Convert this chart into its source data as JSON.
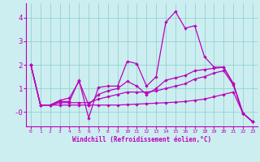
{
  "xlabel": "Windchill (Refroidissement éolien,°C)",
  "background_color": "#cceef0",
  "line_color": "#bb00bb",
  "xlim": [
    -0.5,
    23.5
  ],
  "ylim": [
    -0.6,
    4.6
  ],
  "xticks": [
    0,
    1,
    2,
    3,
    4,
    5,
    6,
    7,
    8,
    9,
    10,
    11,
    12,
    13,
    14,
    15,
    16,
    17,
    18,
    19,
    20,
    21,
    22,
    23
  ],
  "ytick_vals": [
    0,
    1,
    2,
    3,
    4
  ],
  "ytick_labels": [
    "-0",
    "1",
    "2",
    "3",
    "4"
  ],
  "series": [
    [
      2.0,
      0.3,
      0.3,
      0.45,
      0.45,
      1.35,
      -0.25,
      1.05,
      1.1,
      1.1,
      2.15,
      2.05,
      1.1,
      1.5,
      3.8,
      4.25,
      3.55,
      3.65,
      2.35,
      1.9,
      1.9,
      1.2,
      -0.05,
      -0.4
    ],
    [
      2.0,
      0.3,
      0.3,
      0.5,
      0.6,
      1.3,
      0.3,
      0.75,
      0.9,
      1.0,
      1.3,
      1.1,
      0.75,
      1.0,
      1.35,
      1.45,
      1.55,
      1.75,
      1.8,
      1.85,
      1.9,
      1.2,
      -0.05,
      -0.4
    ],
    [
      2.0,
      0.3,
      0.3,
      0.4,
      0.4,
      0.4,
      0.4,
      0.55,
      0.65,
      0.75,
      0.85,
      0.85,
      0.85,
      0.9,
      1.0,
      1.1,
      1.2,
      1.4,
      1.5,
      1.65,
      1.75,
      1.15,
      -0.05,
      -0.4
    ],
    [
      2.0,
      0.3,
      0.3,
      0.3,
      0.3,
      0.3,
      0.3,
      0.3,
      0.3,
      0.3,
      0.32,
      0.34,
      0.36,
      0.38,
      0.4,
      0.42,
      0.45,
      0.5,
      0.55,
      0.65,
      0.75,
      0.85,
      -0.05,
      -0.4
    ]
  ]
}
